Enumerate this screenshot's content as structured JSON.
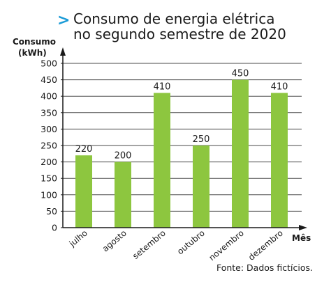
{
  "title_marker": ">",
  "chart_data": {
    "type": "bar",
    "title": "Consumo de energia elétrica no segundo semestre de 2020",
    "title_lines": [
      "Consumo de energia elétrica",
      "no segundo semestre de 2020"
    ],
    "ylabel": "Consumo",
    "ylabel_unit": "(kWh)",
    "xlabel": "Mês",
    "categories": [
      "julho",
      "agosto",
      "setembro",
      "outubro",
      "novembro",
      "dezembro"
    ],
    "values": [
      220,
      200,
      410,
      250,
      450,
      410
    ],
    "value_labels": [
      "220",
      "200",
      "410",
      "250",
      "450",
      "410"
    ],
    "ylim": [
      0,
      500
    ],
    "yticks": [
      0,
      50,
      100,
      150,
      200,
      250,
      300,
      350,
      400,
      450,
      500
    ],
    "grid": true,
    "bar_color": "#8dc63f",
    "grid_color": "#4a4a4a",
    "axis_color": "#1a1a1a",
    "marker_color": "#1a9bd7"
  },
  "source": "Fonte: Dados fictícios."
}
